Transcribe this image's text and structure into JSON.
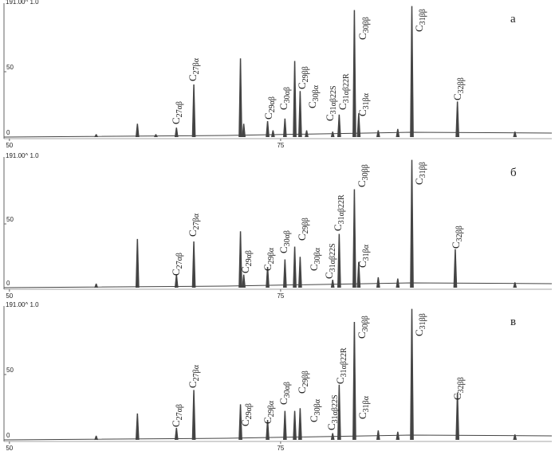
{
  "chart_data": [
    {
      "type": "chromatogram",
      "header": "191.00^ 1.0",
      "panel_label": "а",
      "color": "#444444",
      "xlim": [
        49.5,
        100
      ],
      "ylim": [
        0,
        100
      ],
      "xticks": [
        50,
        75
      ],
      "yticks": [
        0,
        50
      ],
      "x": [
        58.0,
        61.8,
        63.5,
        65.4,
        67.0,
        71.3,
        71.6,
        73.8,
        74.3,
        75.4,
        76.3,
        76.8,
        77.4,
        79.8,
        80.4,
        81.8,
        82.2,
        84.0,
        85.8,
        87.1,
        91.3,
        96.6
      ],
      "values": [
        2,
        10,
        2,
        7,
        40,
        60,
        10,
        12,
        5,
        14,
        58,
        35,
        5,
        4,
        17,
        97,
        18,
        5,
        6,
        100,
        27,
        4
      ],
      "annotations": [
        "C27αβ",
        "C27βα",
        "C29αβ",
        "C30αβ",
        "C29ββ",
        "C30βα",
        "C31αβ22S",
        "C31αβ22R",
        "C30ββ",
        "C31βα",
        "C31ββ",
        "C32ββ"
      ]
    },
    {
      "type": "chromatogram",
      "header": "191.00^ 1.0",
      "panel_label": "б",
      "color": "#444444",
      "xlim": [
        49.5,
        100
      ],
      "ylim": [
        0,
        100
      ],
      "xticks": [
        50,
        75
      ],
      "yticks": [
        0,
        50
      ],
      "x": [
        58.0,
        61.8,
        65.4,
        67.0,
        71.3,
        71.6,
        73.8,
        75.4,
        76.3,
        76.8,
        79.8,
        80.4,
        81.8,
        82.2,
        84.0,
        85.8,
        87.1,
        91.1,
        96.6
      ],
      "values": [
        3,
        38,
        10,
        36,
        44,
        10,
        16,
        22,
        32,
        24,
        6,
        42,
        77,
        20,
        8,
        7,
        100,
        30,
        4
      ],
      "annotations": [
        "C27αβ",
        "C27βα",
        "C29αβ",
        "C29βα",
        "C30αβ",
        "C29ββ",
        "C30βα",
        "C31αβ22S",
        "C31αβ22R",
        "C30ββ",
        "C31βα",
        "C31ββ",
        "C32ββ"
      ]
    },
    {
      "type": "chromatogram",
      "header": "191.00^ 1.0",
      "panel_label": "в",
      "color": "#444444",
      "xlim": [
        49.5,
        100
      ],
      "ylim": [
        0,
        100
      ],
      "xticks": [
        50,
        75
      ],
      "yticks": [
        0,
        50
      ],
      "x": [
        58.0,
        61.8,
        65.4,
        67.0,
        71.3,
        73.8,
        75.4,
        76.3,
        76.8,
        79.8,
        80.4,
        81.8,
        84.0,
        85.8,
        87.1,
        91.3,
        96.6
      ],
      "values": [
        3,
        20,
        9,
        38,
        27,
        15,
        22,
        22,
        24,
        5,
        42,
        90,
        7,
        6,
        100,
        36,
        4
      ],
      "annotations": [
        "C27αβ",
        "C27βα",
        "C29αβ",
        "C29βα",
        "C30αβ",
        "C29ββ",
        "C30βα",
        "C31αβ22S",
        "C31αβ22R",
        "C30ββ",
        "C31βα",
        "C31ββ",
        "C32ββ"
      ]
    }
  ]
}
